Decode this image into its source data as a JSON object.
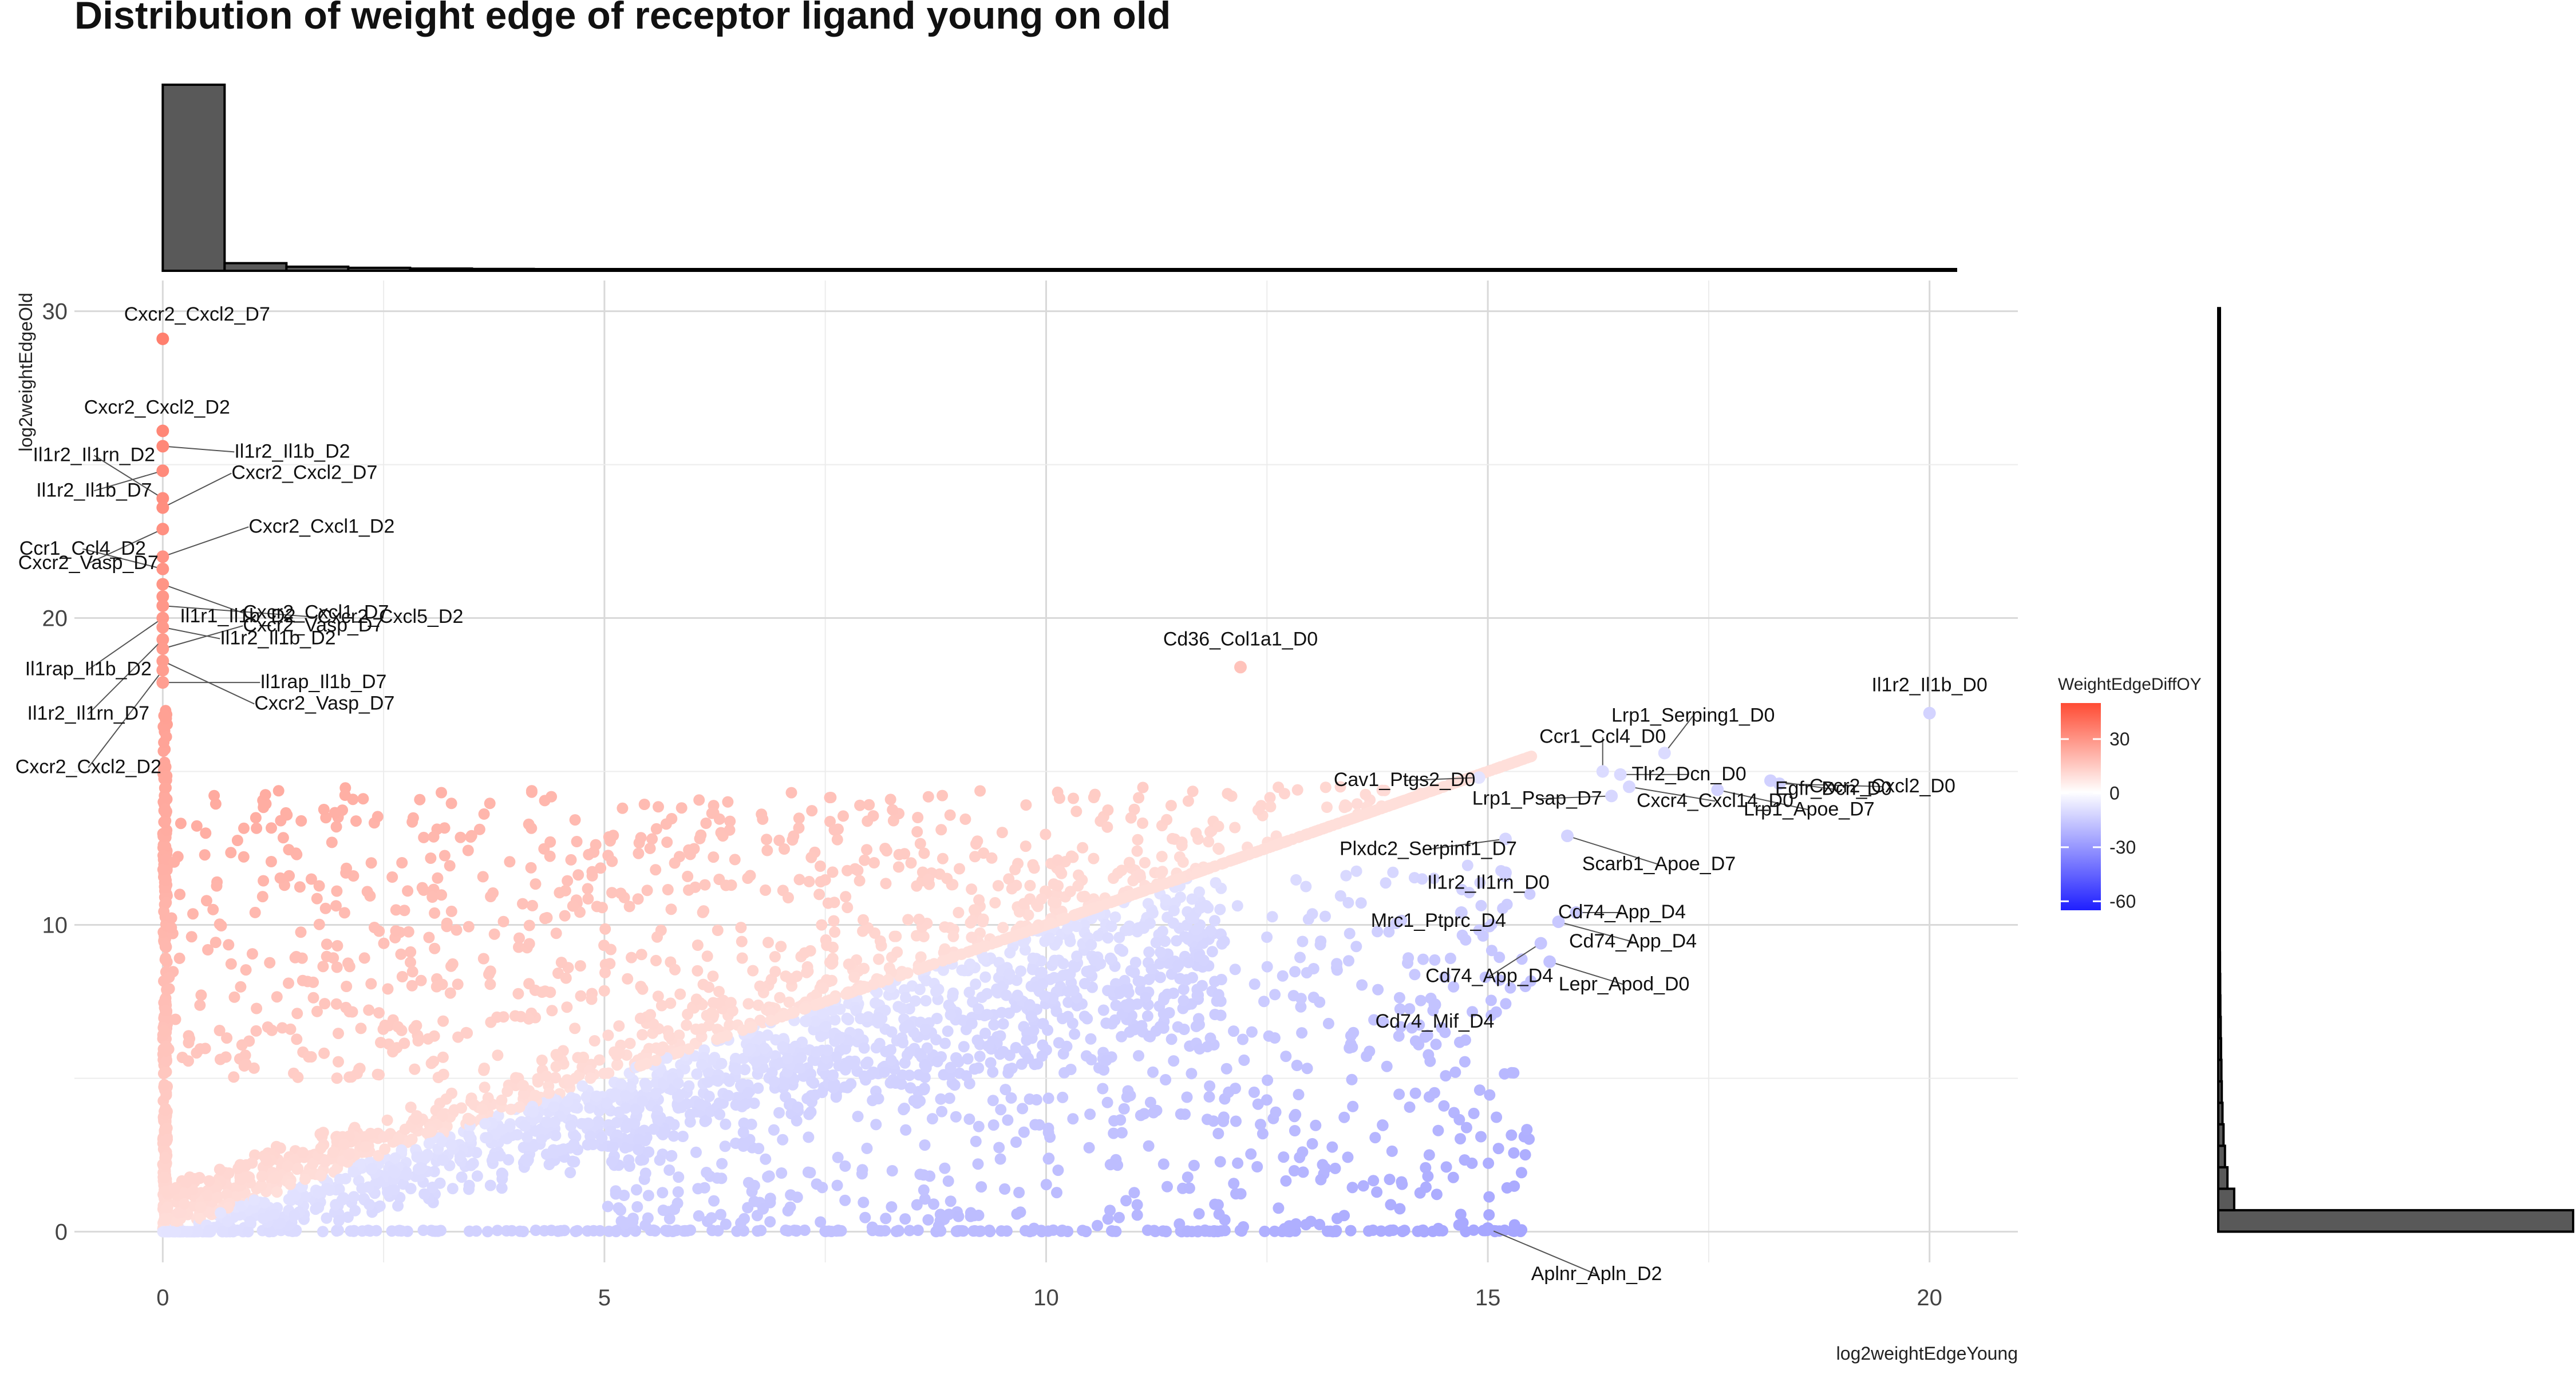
{
  "chart_data": {
    "type": "scatter",
    "title": "Distribution of weight edge of receptor ligand young on old",
    "xlabel": "log2weightEdgeYoung",
    "ylabel": "log2weightEdgeOld",
    "xlim": [
      -1,
      21
    ],
    "ylim": [
      -1,
      31
    ],
    "xticks": [
      0,
      5,
      10,
      15,
      20
    ],
    "yticks": [
      0,
      10,
      20,
      30
    ],
    "grid": true,
    "legend": {
      "title": "WeightEdgeDiffOY",
      "position": "right",
      "ticks": [
        30,
        0,
        -30,
        -60
      ],
      "range": [
        -65,
        50
      ],
      "colors": {
        "low": "#1f1fff",
        "mid": "#ffffff",
        "high": "#ff4b33"
      }
    },
    "labeled_points": [
      {
        "label": "Cxcr2_Cxcl2_D7",
        "x": 0,
        "y": 29.1
      },
      {
        "label": "Cxcr2_Cxcl2_D2",
        "x": 0,
        "y": 26.1
      },
      {
        "label": "Il1r2_Il1b_D2",
        "x": 0,
        "y": 25.6
      },
      {
        "label": "Il1r2_Il1b_D7",
        "x": 0,
        "y": 24.8
      },
      {
        "label": "Il1r2_Il1rn_D2",
        "x": 0,
        "y": 23.9
      },
      {
        "label": "Cxcr2_Cxcl2_D7",
        "x": 0,
        "y": 23.6
      },
      {
        "label": "Cxcr2_Vasp_D7",
        "x": 0,
        "y": 22.9
      },
      {
        "label": "Cxcr2_Cxcl1_D2",
        "x": 0,
        "y": 22.0
      },
      {
        "label": "Ccr1_Ccl4_D2",
        "x": 0,
        "y": 21.6
      },
      {
        "label": "Cxcr2_Cxcl1_D7",
        "x": 0,
        "y": 21.1
      },
      {
        "label": "Il1r1_Il1b_D2",
        "x": 0,
        "y": 20.7
      },
      {
        "label": "Cxcr2_Cxcl5_D2",
        "x": 0,
        "y": 20.4
      },
      {
        "label": "Il1rap_Il1b_D2",
        "x": 0,
        "y": 20.0
      },
      {
        "label": "Il1r2_Il1b_D2",
        "x": 0,
        "y": 19.7
      },
      {
        "label": "Il1r2_Il1rn_D7",
        "x": 0,
        "y": 19.3
      },
      {
        "label": "Cxcr2_Vasp_D7",
        "x": 0,
        "y": 19.0
      },
      {
        "label": "Cxcr2_Vasp_D7",
        "x": 0,
        "y": 18.6
      },
      {
        "label": "Cxcr2_Cxcl2_D2",
        "x": 0,
        "y": 18.3
      },
      {
        "label": "Il1rap_Il1b_D7",
        "x": 0,
        "y": 17.9
      },
      {
        "label": "Cd36_Col1a1_D0",
        "x": 12.2,
        "y": 18.4
      },
      {
        "label": "Il1r2_Il1b_D0",
        "x": 20.0,
        "y": 16.9
      },
      {
        "label": "Lrp1_Serping1_D0",
        "x": 17.0,
        "y": 15.6
      },
      {
        "label": "Ccr1_Ccl4_D0",
        "x": 16.3,
        "y": 15.0
      },
      {
        "label": "Egfr_Dcn_D0",
        "x": 18.2,
        "y": 14.7
      },
      {
        "label": "Cav1_Ptgs2_D0",
        "x": 14.9,
        "y": 14.8
      },
      {
        "label": "Tlr2_Dcn_D0",
        "x": 16.5,
        "y": 14.9
      },
      {
        "label": "Cxcr2_Cxcl2_D0",
        "x": 18.3,
        "y": 14.6
      },
      {
        "label": "Lrp1_Psap_D7",
        "x": 16.4,
        "y": 14.2
      },
      {
        "label": "Cxcr4_Cxcl14_D0",
        "x": 16.6,
        "y": 14.5
      },
      {
        "label": "Lrp1_Apoe_D7",
        "x": 17.6,
        "y": 14.4
      },
      {
        "label": "Plxdc2_Serpinf1_D7",
        "x": 15.2,
        "y": 12.8
      },
      {
        "label": "Scarb1_Apoe_D7",
        "x": 15.9,
        "y": 12.9
      },
      {
        "label": "Il1r2_Il1rn_D0",
        "x": 15.2,
        "y": 11.7
      },
      {
        "label": "Cd74_App_D4",
        "x": 16.0,
        "y": 10.4
      },
      {
        "label": "Mrc1_Ptprc_D4",
        "x": 14.7,
        "y": 10.4
      },
      {
        "label": "Cd74_App_D4",
        "x": 15.8,
        "y": 10.1
      },
      {
        "label": "Cd74_App_D4",
        "x": 15.6,
        "y": 9.4
      },
      {
        "label": "Lepr_Apod_D0",
        "x": 15.7,
        "y": 8.8
      },
      {
        "label": "Cd74_Mif_D4",
        "x": 14.4,
        "y": 7.4
      },
      {
        "label": "Aplnr_Apln_D2",
        "x": 15.0,
        "y": 0.1
      }
    ],
    "x_histogram": {
      "bin_width": 0.7,
      "bin_start": 0,
      "counts": [
        100,
        4.1,
        2.2,
        1.6,
        1.2,
        1.0,
        0.9,
        0.8,
        0.7,
        0.6,
        0.55,
        0.5,
        0.45,
        0.4,
        0.38,
        0.35,
        0.32,
        0.3,
        0.28,
        0.26,
        0.24,
        0.22,
        0.2,
        0.18,
        0.16,
        0.14,
        0.12,
        0.1,
        0.08
      ]
    },
    "y_histogram": {
      "bin_width": 0.7,
      "bin_start": 0,
      "counts": [
        100,
        4.5,
        2.6,
        1.9,
        1.5,
        1.2,
        1.0,
        0.9,
        0.8,
        0.7,
        0.6,
        0.55,
        0.5,
        0.45,
        0.4,
        0.37,
        0.34,
        0.3,
        0.27,
        0.24,
        0.21,
        0.18,
        0.16,
        0.14,
        0.12,
        0.1,
        0.08,
        0.06,
        0.05,
        0.04,
        0.03,
        0.02,
        0.02,
        0.01,
        0.01,
        0.01,
        0.01,
        0.01,
        0.01,
        0.01,
        0.01,
        0.01,
        0.01
      ]
    }
  }
}
